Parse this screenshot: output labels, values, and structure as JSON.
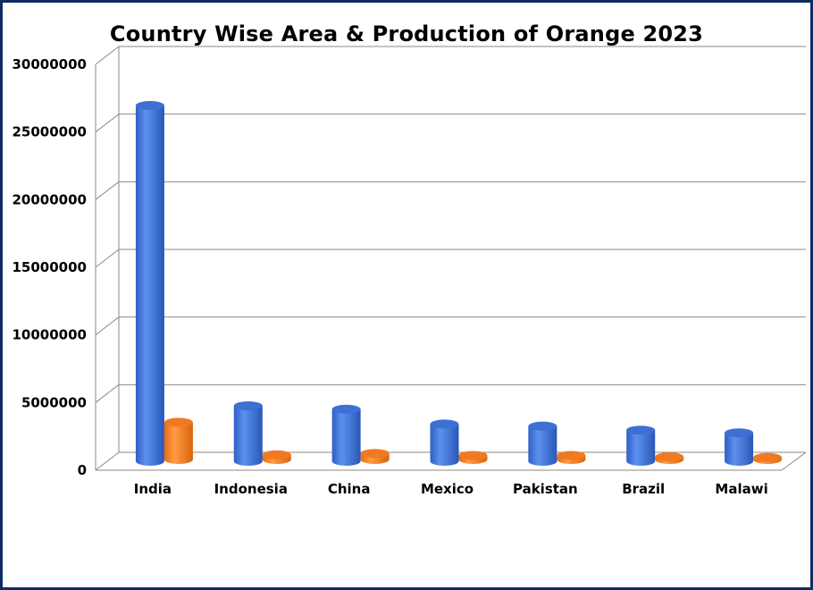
{
  "chart_data": {
    "type": "bar",
    "style": "3d-cylinder",
    "title": "Country Wise Area & Production of Orange 2023",
    "categories": [
      "India",
      "Indonesia",
      "China",
      "Mexico",
      "Pakistan",
      "Brazil",
      "Malawi"
    ],
    "series": [
      {
        "color": "#4a7fe0",
        "values": [
          26300000,
          4100000,
          3850000,
          2750000,
          2600000,
          2300000,
          2100000
        ]
      },
      {
        "color": "#f5862a",
        "values": [
          2750000,
          350000,
          450000,
          300000,
          300000,
          200000,
          150000
        ]
      }
    ],
    "yticks": [
      "30000000",
      "25000000",
      "20000000",
      "15000000",
      "10000000",
      "5000000",
      "0"
    ],
    "ylim": [
      0,
      30000000
    ],
    "grid": true,
    "legend": "none"
  },
  "colors": {
    "frame": "#0d2d63"
  }
}
